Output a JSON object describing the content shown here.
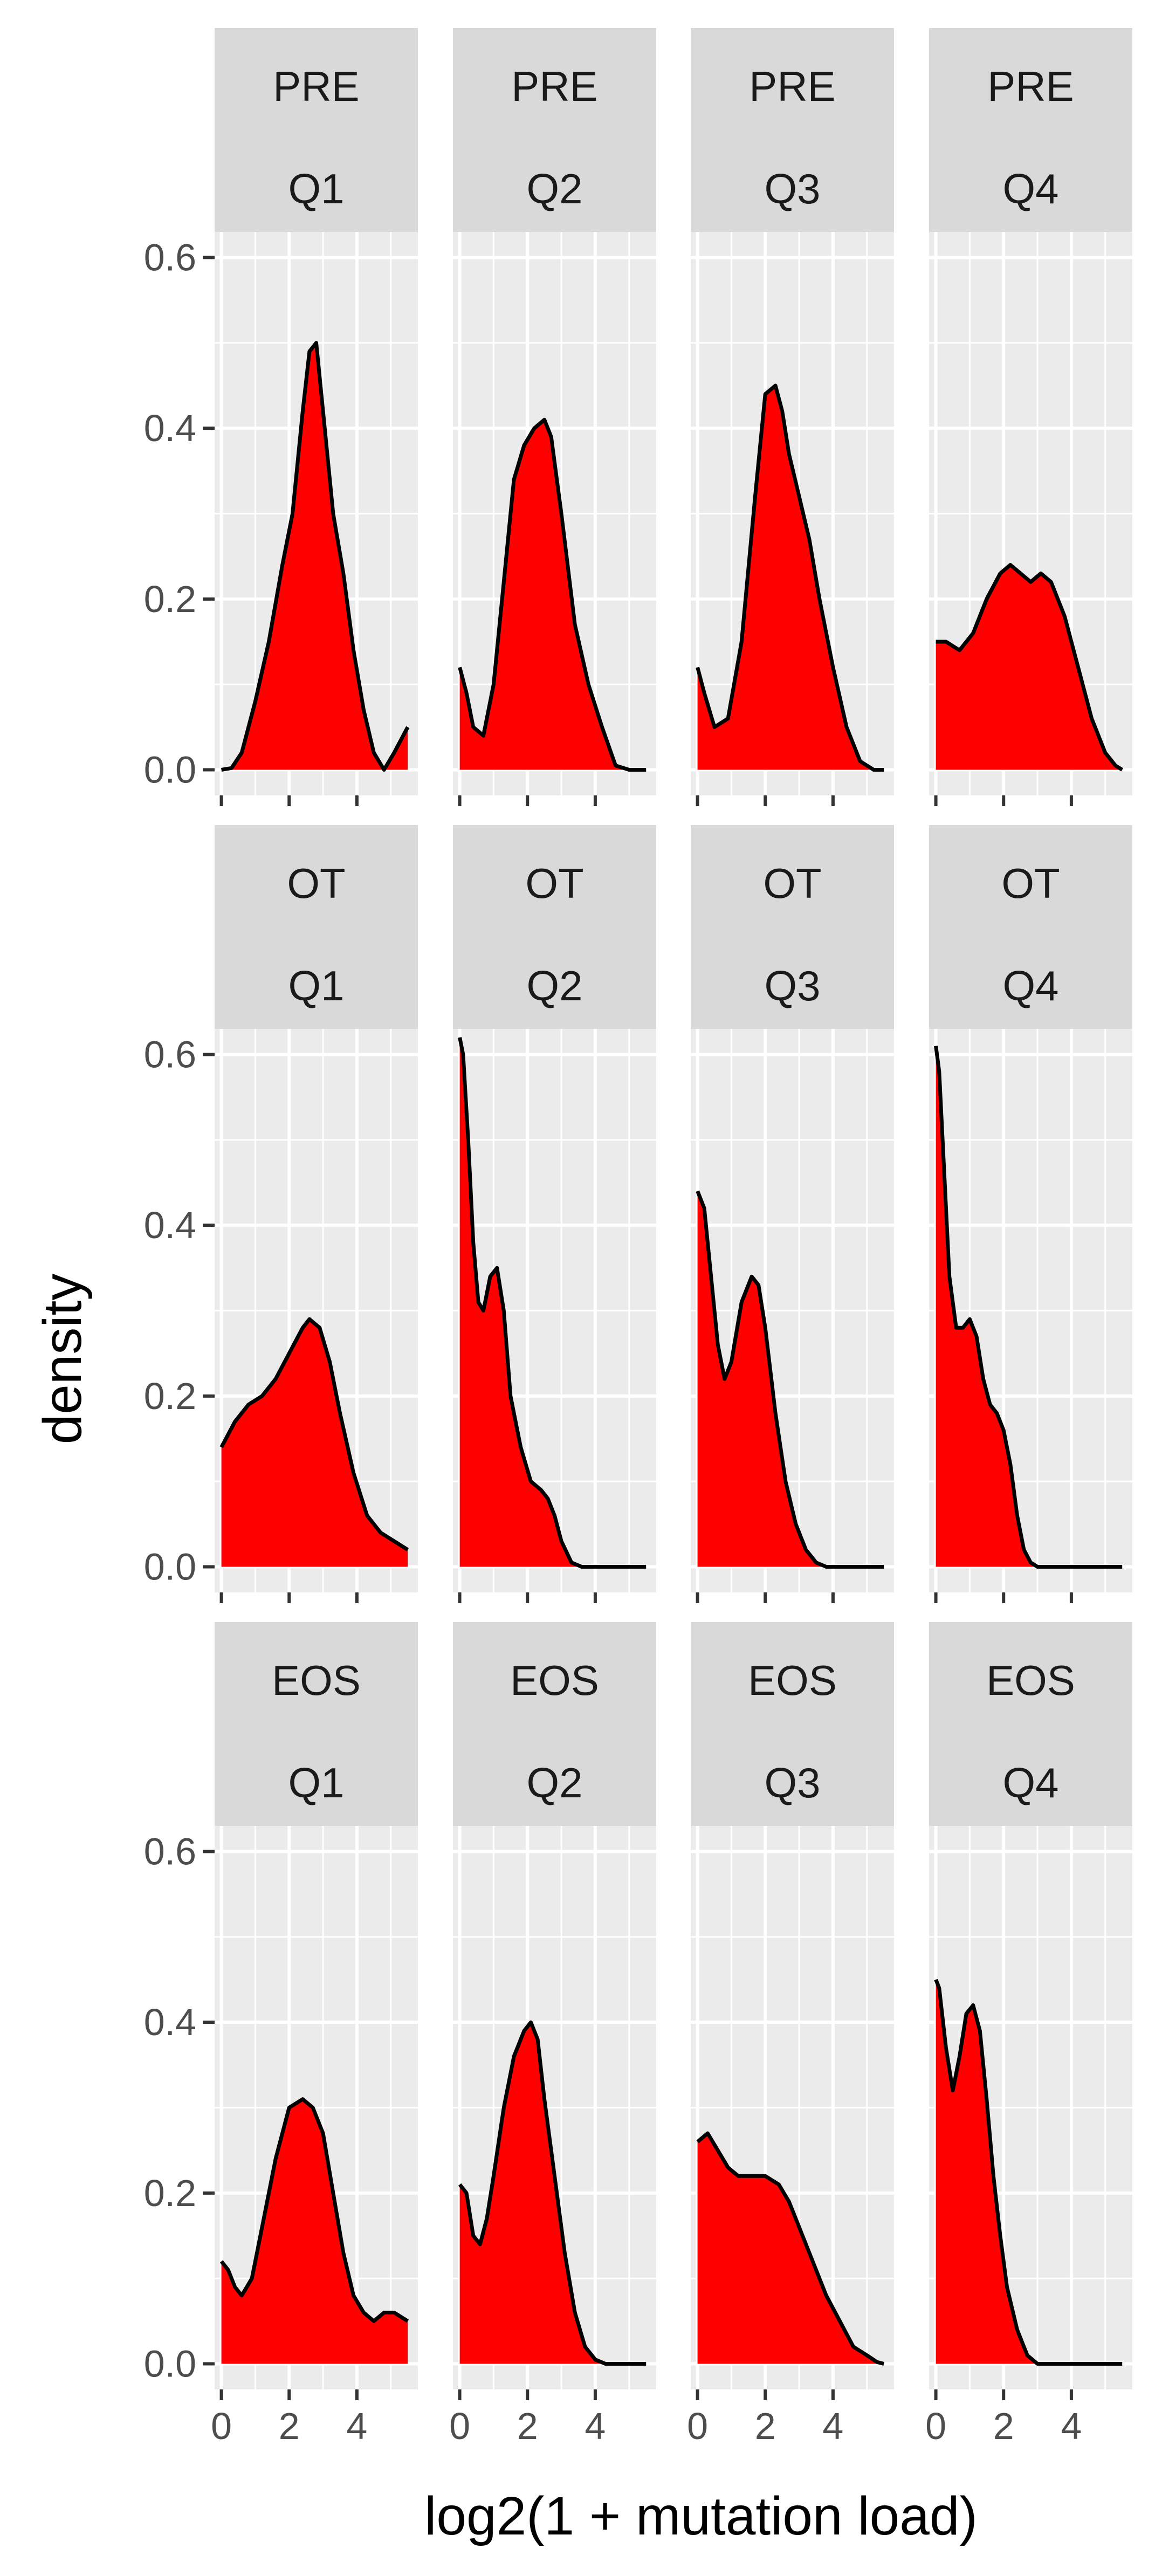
{
  "chart_data": {
    "type": "area",
    "chart_kind": "faceted density plot",
    "xlabel": "log2(1 + mutation load)",
    "ylabel": "density",
    "xlim": [
      -0.2,
      5.8
    ],
    "ylim": [
      -0.03,
      0.63
    ],
    "x_ticks": [
      0,
      2,
      4
    ],
    "y_ticks": [
      0.0,
      0.2,
      0.4,
      0.6
    ],
    "y_tick_labels": [
      "0.0",
      "0.2",
      "0.4",
      "0.6"
    ],
    "x_tick_labels": [
      "0",
      "2",
      "4"
    ],
    "grid": true,
    "fill_color": "#ff0000",
    "line_color": "#000000",
    "panel_background": "#ebebeb",
    "strip_background": "#d9d9d9",
    "row_strips": [
      "PRE",
      "OT",
      "EOS"
    ],
    "col_strips": [
      "Q1",
      "Q2",
      "Q3",
      "Q4"
    ],
    "panels": [
      {
        "row": "PRE",
        "col": "Q1",
        "x": [
          0,
          0.3,
          0.6,
          1.0,
          1.4,
          1.8,
          2.1,
          2.4,
          2.6,
          2.8,
          3.0,
          3.3,
          3.6,
          3.9,
          4.2,
          4.5,
          4.8,
          5.1,
          5.5
        ],
        "y": [
          0,
          0.002,
          0.02,
          0.08,
          0.15,
          0.24,
          0.3,
          0.42,
          0.49,
          0.5,
          0.42,
          0.3,
          0.23,
          0.14,
          0.07,
          0.02,
          0.0,
          0.02,
          0.05
        ]
      },
      {
        "row": "PRE",
        "col": "Q2",
        "x": [
          0,
          0.2,
          0.4,
          0.7,
          1.0,
          1.3,
          1.6,
          1.9,
          2.2,
          2.5,
          2.7,
          3.0,
          3.4,
          3.8,
          4.2,
          4.6,
          5.0,
          5.5
        ],
        "y": [
          0.12,
          0.09,
          0.05,
          0.04,
          0.1,
          0.22,
          0.34,
          0.38,
          0.4,
          0.41,
          0.39,
          0.3,
          0.17,
          0.1,
          0.05,
          0.005,
          0.0,
          0.0
        ],
        "x_max": 5.2
      },
      {
        "row": "PRE",
        "col": "Q3",
        "x": [
          0,
          0.2,
          0.5,
          0.9,
          1.3,
          1.7,
          2.0,
          2.3,
          2.5,
          2.7,
          3.0,
          3.3,
          3.6,
          4.0,
          4.4,
          4.8,
          5.2,
          5.5
        ],
        "y": [
          0.12,
          0.09,
          0.05,
          0.06,
          0.15,
          0.32,
          0.44,
          0.45,
          0.42,
          0.37,
          0.32,
          0.27,
          0.2,
          0.12,
          0.05,
          0.01,
          0.0,
          0.0
        ]
      },
      {
        "row": "PRE",
        "col": "Q4",
        "x": [
          0,
          0.3,
          0.7,
          1.1,
          1.5,
          1.9,
          2.2,
          2.5,
          2.8,
          3.1,
          3.4,
          3.8,
          4.2,
          4.6,
          5.0,
          5.3,
          5.5
        ],
        "y": [
          0.15,
          0.15,
          0.14,
          0.16,
          0.2,
          0.23,
          0.24,
          0.23,
          0.22,
          0.23,
          0.22,
          0.18,
          0.12,
          0.06,
          0.02,
          0.005,
          0.0
        ]
      },
      {
        "row": "OT",
        "col": "Q1",
        "x": [
          0,
          0.4,
          0.8,
          1.2,
          1.6,
          2.0,
          2.4,
          2.6,
          2.9,
          3.2,
          3.5,
          3.9,
          4.3,
          4.7,
          5.1,
          5.5
        ],
        "y": [
          0.14,
          0.17,
          0.19,
          0.2,
          0.22,
          0.25,
          0.28,
          0.29,
          0.28,
          0.24,
          0.18,
          0.11,
          0.06,
          0.04,
          0.03,
          0.02
        ]
      },
      {
        "row": "OT",
        "col": "Q2",
        "x": [
          0,
          0.1,
          0.25,
          0.4,
          0.55,
          0.7,
          0.9,
          1.1,
          1.3,
          1.5,
          1.8,
          2.1,
          2.4,
          2.6,
          2.8,
          3.0,
          3.3,
          3.6,
          4.0,
          4.5,
          5.0,
          5.5
        ],
        "y": [
          0.62,
          0.6,
          0.5,
          0.38,
          0.31,
          0.3,
          0.34,
          0.35,
          0.3,
          0.2,
          0.14,
          0.1,
          0.09,
          0.08,
          0.06,
          0.03,
          0.005,
          0.0,
          0.0,
          0.0,
          0.0,
          0.0
        ]
      },
      {
        "row": "OT",
        "col": "Q3",
        "x": [
          0,
          0.2,
          0.4,
          0.6,
          0.8,
          1.0,
          1.3,
          1.6,
          1.8,
          2.0,
          2.3,
          2.6,
          2.9,
          3.2,
          3.5,
          3.8,
          4.2,
          4.6,
          5.0,
          5.5
        ],
        "y": [
          0.44,
          0.42,
          0.34,
          0.26,
          0.22,
          0.24,
          0.31,
          0.34,
          0.33,
          0.28,
          0.18,
          0.1,
          0.05,
          0.02,
          0.005,
          0.0,
          0.0,
          0.0,
          0.0,
          0.0
        ]
      },
      {
        "row": "OT",
        "col": "Q4",
        "x": [
          0,
          0.1,
          0.25,
          0.4,
          0.6,
          0.8,
          1.0,
          1.2,
          1.4,
          1.6,
          1.8,
          2.0,
          2.2,
          2.4,
          2.6,
          2.8,
          3.0,
          3.3,
          3.6,
          4.0,
          4.5,
          5.0,
          5.5
        ],
        "y": [
          0.61,
          0.58,
          0.46,
          0.34,
          0.28,
          0.28,
          0.29,
          0.27,
          0.22,
          0.19,
          0.18,
          0.16,
          0.12,
          0.06,
          0.02,
          0.005,
          0.0,
          0.0,
          0.0,
          0.0,
          0.0,
          0.0,
          0.0
        ]
      },
      {
        "row": "EOS",
        "col": "Q1",
        "x": [
          0,
          0.2,
          0.4,
          0.6,
          0.9,
          1.2,
          1.6,
          2.0,
          2.4,
          2.7,
          3.0,
          3.3,
          3.6,
          3.9,
          4.2,
          4.5,
          4.8,
          5.1,
          5.5
        ],
        "y": [
          0.12,
          0.11,
          0.09,
          0.08,
          0.1,
          0.16,
          0.24,
          0.3,
          0.31,
          0.3,
          0.27,
          0.2,
          0.13,
          0.08,
          0.06,
          0.05,
          0.06,
          0.06,
          0.05
        ]
      },
      {
        "row": "EOS",
        "col": "Q2",
        "x": [
          0,
          0.2,
          0.4,
          0.6,
          0.8,
          1.0,
          1.3,
          1.6,
          1.9,
          2.1,
          2.3,
          2.5,
          2.8,
          3.1,
          3.4,
          3.7,
          4.0,
          4.3,
          4.6,
          5.0,
          5.5
        ],
        "y": [
          0.21,
          0.2,
          0.15,
          0.14,
          0.17,
          0.22,
          0.3,
          0.36,
          0.39,
          0.4,
          0.38,
          0.31,
          0.22,
          0.13,
          0.06,
          0.02,
          0.005,
          0.0,
          0.0,
          0.0,
          0.0
        ]
      },
      {
        "row": "EOS",
        "col": "Q3",
        "x": [
          0,
          0.3,
          0.6,
          0.9,
          1.2,
          1.6,
          2.0,
          2.4,
          2.7,
          3.0,
          3.4,
          3.8,
          4.2,
          4.6,
          5.0,
          5.3,
          5.5
        ],
        "y": [
          0.26,
          0.27,
          0.25,
          0.23,
          0.22,
          0.22,
          0.22,
          0.21,
          0.19,
          0.16,
          0.12,
          0.08,
          0.05,
          0.02,
          0.01,
          0.002,
          0.0
        ]
      },
      {
        "row": "EOS",
        "col": "Q4",
        "x": [
          0,
          0.1,
          0.3,
          0.5,
          0.7,
          0.9,
          1.1,
          1.3,
          1.5,
          1.7,
          1.9,
          2.1,
          2.4,
          2.7,
          3.0,
          3.3,
          3.6,
          4.0,
          4.5,
          5.0,
          5.5
        ],
        "y": [
          0.45,
          0.44,
          0.37,
          0.32,
          0.36,
          0.41,
          0.42,
          0.39,
          0.31,
          0.22,
          0.15,
          0.09,
          0.04,
          0.01,
          0.0,
          0.0,
          0.0,
          0.0,
          0.0,
          0.0,
          0.0
        ]
      }
    ]
  }
}
